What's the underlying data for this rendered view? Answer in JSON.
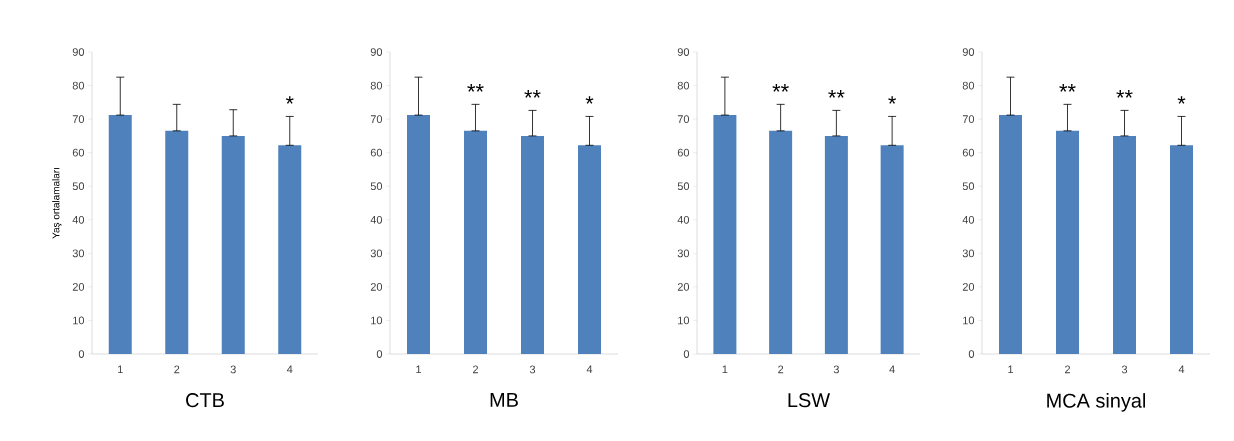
{
  "chart_data": [
    {
      "type": "bar",
      "xlabel": "CTB",
      "ylabel": "Yaş ortalamaları",
      "categories": [
        "1",
        "2",
        "3",
        "4"
      ],
      "values": [
        71.2,
        66.5,
        65.0,
        62.2
      ],
      "errors": [
        [
          71.2,
          82.5
        ],
        [
          66.5,
          74.4
        ],
        [
          65.0,
          72.8
        ],
        [
          62.2,
          70.8
        ]
      ],
      "color": "#4f81bd",
      "ylim": [
        0,
        90
      ],
      "yticks": [
        0,
        10,
        20,
        30,
        40,
        50,
        60,
        70,
        80,
        90
      ],
      "grid": false,
      "annotations": [
        "*"
      ]
    },
    {
      "type": "bar",
      "xlabel": "MB",
      "categories": [
        "1",
        "2",
        "3",
        "4"
      ],
      "values": [
        71.2,
        66.5,
        65.0,
        62.2
      ],
      "errors": [
        [
          71.2,
          82.5
        ],
        [
          66.5,
          74.4
        ],
        [
          65.0,
          72.6
        ],
        [
          62.2,
          70.8
        ]
      ],
      "color": "#4f81bd",
      "ylim": [
        0,
        90
      ],
      "yticks": [
        0,
        10,
        20,
        30,
        40,
        50,
        60,
        70,
        80,
        90
      ],
      "grid": false,
      "annotations": [
        "**",
        "**",
        "*"
      ]
    },
    {
      "type": "bar",
      "xlabel": "LSW",
      "categories": [
        "1",
        "2",
        "3",
        "4"
      ],
      "values": [
        71.2,
        66.5,
        65.0,
        62.2
      ],
      "errors": [
        [
          71.2,
          82.5
        ],
        [
          66.5,
          74.4
        ],
        [
          65.0,
          72.6
        ],
        [
          62.2,
          70.8
        ]
      ],
      "color": "#4f81bd",
      "ylim": [
        0,
        90
      ],
      "yticks": [
        0,
        10,
        20,
        30,
        40,
        50,
        60,
        70,
        80,
        90
      ],
      "grid": false,
      "annotations": [
        "**",
        "**",
        "*"
      ]
    },
    {
      "type": "bar",
      "xlabel": "MCA sinyal",
      "categories": [
        "1",
        "2",
        "3",
        "4"
      ],
      "values": [
        71.2,
        66.5,
        65.0,
        62.2
      ],
      "errors": [
        [
          71.2,
          82.5
        ],
        [
          66.5,
          74.4
        ],
        [
          65.0,
          72.6
        ],
        [
          62.2,
          70.8
        ]
      ],
      "color": "#4f81bd",
      "ylim": [
        0,
        90
      ],
      "yticks": [
        0,
        10,
        20,
        30,
        40,
        50,
        60,
        70,
        80,
        90
      ],
      "grid": false,
      "annotations": [
        "**",
        "**",
        "*"
      ]
    }
  ]
}
